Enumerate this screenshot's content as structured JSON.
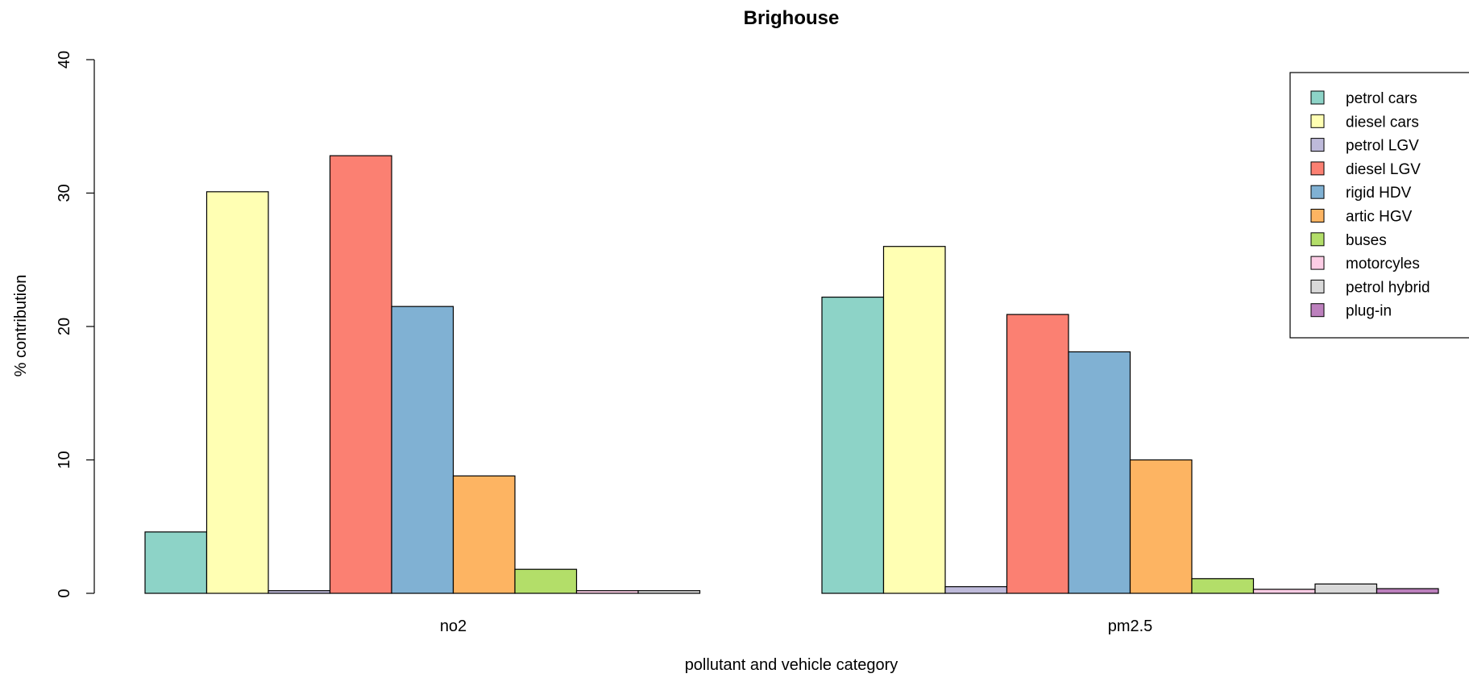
{
  "chart_data": {
    "type": "bar",
    "title": "Brighouse",
    "xlabel": "pollutant and vehicle category",
    "ylabel": "% contribution",
    "ylim": [
      0,
      40
    ],
    "yticks": [
      "0",
      "10",
      "20",
      "30",
      "40"
    ],
    "categories": [
      "no2",
      "pm2.5"
    ],
    "grid": false,
    "legend_position": "top-right",
    "series": [
      {
        "name": "petrol cars",
        "color": "#8DD3C7",
        "values": [
          4.6,
          22.2
        ]
      },
      {
        "name": "diesel cars",
        "color": "#FFFFB3",
        "values": [
          30.1,
          26.0
        ]
      },
      {
        "name": "petrol LGV",
        "color": "#BEBADA",
        "values": [
          0.2,
          0.5
        ]
      },
      {
        "name": "diesel LGV",
        "color": "#FB8072",
        "values": [
          32.8,
          20.9
        ]
      },
      {
        "name": "rigid HDV",
        "color": "#80B1D3",
        "values": [
          21.5,
          18.1
        ]
      },
      {
        "name": "artic HGV",
        "color": "#FDB462",
        "values": [
          8.8,
          10.0
        ]
      },
      {
        "name": "buses",
        "color": "#B3DE69",
        "values": [
          1.8,
          1.1
        ]
      },
      {
        "name": "motorcyles",
        "color": "#FCCDE5",
        "values": [
          0.2,
          0.3
        ]
      },
      {
        "name": "petrol hybrid",
        "color": "#D9D9D9",
        "values": [
          0.2,
          0.7
        ]
      },
      {
        "name": "plug-in",
        "color": "#BC80BD",
        "values": [
          0.0,
          0.35
        ]
      }
    ]
  }
}
